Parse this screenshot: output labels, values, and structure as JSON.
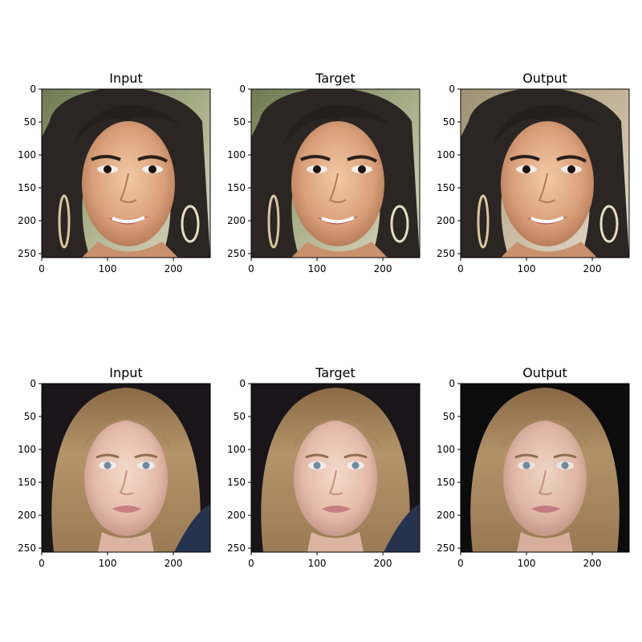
{
  "figure": {
    "rows": [
      {
        "panels": [
          {
            "title": "Input",
            "image": "woman with dark hair smiling, hoop earrings, blurred green background"
          },
          {
            "title": "Target",
            "image": "woman with dark hair smiling, hoop earrings, blurred green background"
          },
          {
            "title": "Output",
            "image": "generated woman with dark hair smiling, soft blurred background"
          }
        ]
      },
      {
        "panels": [
          {
            "title": "Input",
            "image": "woman with long blonde hair, front-facing, dark background"
          },
          {
            "title": "Target",
            "image": "woman with long blonde hair, front-facing, dark background"
          },
          {
            "title": "Output",
            "image": "generated woman with long light-brown hair, front-facing, dark background"
          }
        ]
      }
    ],
    "x_ticks": [
      "0",
      "100",
      "200"
    ],
    "y_ticks": [
      "0",
      "50",
      "100",
      "150",
      "200",
      "250"
    ],
    "axis_range": [
      0,
      256
    ]
  },
  "colors": {
    "frame": "#000000",
    "background": "#ffffff"
  }
}
